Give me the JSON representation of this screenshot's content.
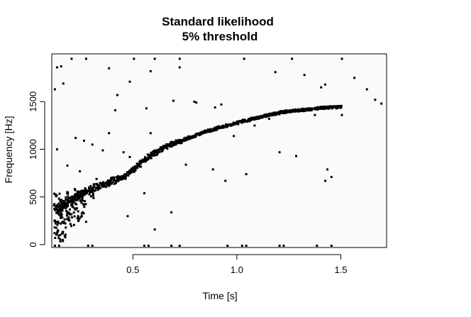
{
  "chart_data": {
    "type": "heatmap",
    "title": "Standard likelihood",
    "subtitle": "5% threshold",
    "xlabel": "Time [s]",
    "ylabel": "Frequency [Hz]",
    "xlim": [
      0.11,
      1.72
    ],
    "ylim": [
      -30,
      2000
    ],
    "x_ticks": [
      0.5,
      1.0,
      1.5
    ],
    "x_tick_labels": [
      "0.5",
      "1.0",
      "1.5"
    ],
    "y_ticks": [
      0,
      500,
      1000,
      1500
    ],
    "y_tick_labels": [
      "0",
      "500",
      "1000",
      "1500"
    ],
    "grid": false,
    "colors": {
      "background": "#fafafa",
      "cell": "#000000",
      "frame": "#000000"
    },
    "ridge": [
      [
        0.13,
        380
      ],
      [
        0.16,
        420
      ],
      [
        0.2,
        480
      ],
      [
        0.25,
        540
      ],
      [
        0.3,
        600
      ],
      [
        0.35,
        640
      ],
      [
        0.4,
        680
      ],
      [
        0.45,
        720
      ],
      [
        0.5,
        800
      ],
      [
        0.55,
        900
      ],
      [
        0.6,
        970
      ],
      [
        0.65,
        1030
      ],
      [
        0.7,
        1080
      ],
      [
        0.75,
        1120
      ],
      [
        0.8,
        1160
      ],
      [
        0.85,
        1200
      ],
      [
        0.9,
        1230
      ],
      [
        0.95,
        1260
      ],
      [
        1.0,
        1290
      ],
      [
        1.05,
        1320
      ],
      [
        1.1,
        1345
      ],
      [
        1.15,
        1370
      ],
      [
        1.2,
        1395
      ],
      [
        1.25,
        1410
      ],
      [
        1.3,
        1420
      ],
      [
        1.35,
        1430
      ],
      [
        1.4,
        1445
      ],
      [
        1.45,
        1450
      ],
      [
        1.5,
        1455
      ]
    ],
    "lowfreq_cluster": [
      [
        0.12,
        200
      ],
      [
        0.13,
        260
      ],
      [
        0.14,
        320
      ],
      [
        0.15,
        360
      ],
      [
        0.16,
        300
      ],
      [
        0.17,
        400
      ],
      [
        0.18,
        350
      ],
      [
        0.2,
        420
      ],
      [
        0.22,
        380
      ],
      [
        0.14,
        160
      ],
      [
        0.16,
        220
      ],
      [
        0.12,
        420
      ],
      [
        0.15,
        460
      ],
      [
        0.19,
        300
      ],
      [
        0.21,
        460
      ],
      [
        0.24,
        500
      ],
      [
        0.26,
        440
      ],
      [
        0.13,
        520
      ],
      [
        0.18,
        540
      ],
      [
        0.23,
        560
      ],
      [
        0.28,
        580
      ],
      [
        0.3,
        520
      ],
      [
        0.17,
        120
      ],
      [
        0.2,
        240
      ],
      [
        0.25,
        320
      ],
      [
        0.13,
        100
      ],
      [
        0.16,
        80
      ],
      [
        0.22,
        280
      ]
    ],
    "baseline_cells": [
      [
        0.12,
        0
      ],
      [
        0.14,
        0
      ],
      [
        0.28,
        0
      ],
      [
        0.3,
        0
      ],
      [
        0.55,
        0
      ],
      [
        0.57,
        0
      ],
      [
        0.68,
        0
      ],
      [
        0.72,
        0
      ],
      [
        0.95,
        0
      ],
      [
        1.02,
        0
      ],
      [
        1.04,
        0
      ],
      [
        1.2,
        0
      ],
      [
        1.22,
        0
      ],
      [
        1.38,
        0
      ],
      [
        1.45,
        0
      ]
    ],
    "scatter_cells": [
      [
        0.13,
        1870
      ],
      [
        0.15,
        1880
      ],
      [
        0.2,
        1960
      ],
      [
        0.27,
        1960
      ],
      [
        0.5,
        1960
      ],
      [
        0.6,
        1960
      ],
      [
        0.72,
        1960
      ],
      [
        1.03,
        1960
      ],
      [
        1.26,
        1960
      ],
      [
        1.5,
        1960
      ],
      [
        0.16,
        1700
      ],
      [
        0.38,
        1860
      ],
      [
        0.48,
        1720
      ],
      [
        0.58,
        1830
      ],
      [
        0.72,
        1870
      ],
      [
        1.18,
        1820
      ],
      [
        1.32,
        1790
      ],
      [
        1.56,
        1760
      ],
      [
        0.42,
        1580
      ],
      [
        0.69,
        1520
      ],
      [
        0.79,
        1510
      ],
      [
        0.8,
        1500
      ],
      [
        0.92,
        1480
      ],
      [
        1.4,
        1660
      ],
      [
        1.42,
        1690
      ],
      [
        1.62,
        1640
      ],
      [
        1.66,
        1530
      ],
      [
        1.69,
        1490
      ],
      [
        0.41,
        1420
      ],
      [
        0.56,
        1440
      ],
      [
        0.89,
        1450
      ],
      [
        1.37,
        1370
      ],
      [
        1.5,
        1370
      ],
      [
        1.15,
        1330
      ],
      [
        0.35,
        1000
      ],
      [
        0.3,
        1060
      ],
      [
        0.45,
        980
      ],
      [
        0.58,
        1180
      ],
      [
        0.13,
        1010
      ],
      [
        0.12,
        1640
      ],
      [
        0.22,
        1130
      ],
      [
        0.26,
        1100
      ],
      [
        0.38,
        1180
      ],
      [
        0.48,
        930
      ],
      [
        0.75,
        850
      ],
      [
        0.88,
        800
      ],
      [
        0.94,
        680
      ],
      [
        1.2,
        980
      ],
      [
        1.28,
        940
      ],
      [
        1.42,
        680
      ],
      [
        1.45,
        720
      ],
      [
        1.43,
        800
      ],
      [
        1.04,
        750
      ],
      [
        0.55,
        550
      ],
      [
        0.68,
        350
      ],
      [
        0.47,
        310
      ],
      [
        0.27,
        250
      ],
      [
        0.6,
        170
      ],
      [
        0.38,
        640
      ],
      [
        0.32,
        700
      ],
      [
        0.24,
        780
      ],
      [
        0.18,
        840
      ],
      [
        1.08,
        1260
      ],
      [
        0.98,
        1150
      ]
    ]
  }
}
